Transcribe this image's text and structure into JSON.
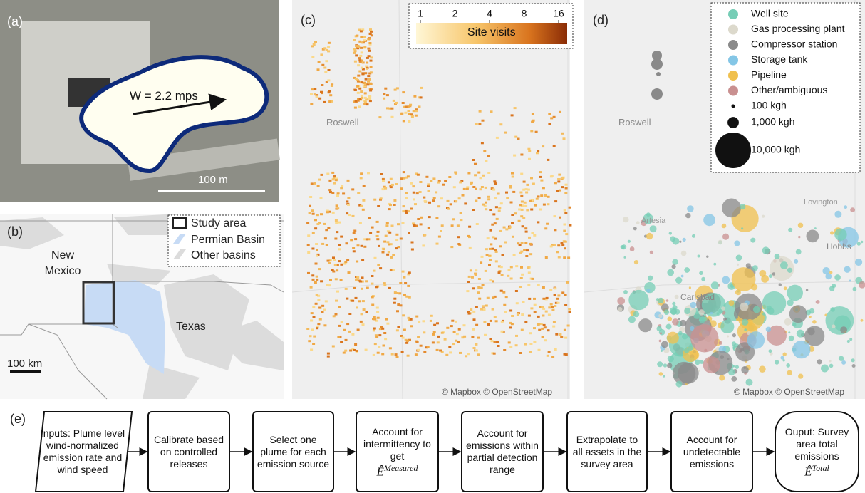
{
  "panel_a": {
    "label": "(a)",
    "annotation": "W = 2.2 mps",
    "scale_bar": "100 m"
  },
  "panel_b": {
    "label": "(b)",
    "legend": [
      "Study area",
      "Permian Basin",
      "Other basins"
    ],
    "places": [
      "New Mexico",
      "Texas"
    ],
    "scale_bar": "100 km"
  },
  "panel_c": {
    "label": "(c)",
    "colorbar_title": "Site visits",
    "colorbar_ticks": [
      1,
      2,
      4,
      8,
      16
    ],
    "places": [
      "Roswell"
    ],
    "credit": "© Mapbox © OpenStreetMap"
  },
  "panel_d": {
    "label": "(d)",
    "legend": [
      {
        "name": "Well site",
        "color": "#76cdb6"
      },
      {
        "name": "Gas processing plant",
        "color": "#dcd9cc"
      },
      {
        "name": "Compressor station",
        "color": "#8a8a8a"
      },
      {
        "name": "Storage tank",
        "color": "#84c6e6"
      },
      {
        "name": "Pipeline",
        "color": "#f0c04e"
      },
      {
        "name": "Other/ambiguous",
        "color": "#c99090"
      }
    ],
    "size_legend": [
      {
        "value": 100,
        "label": "100 kgh"
      },
      {
        "value": 1000,
        "label": "1,000 kgh"
      },
      {
        "value": 10000,
        "label": "10,000 kgh"
      }
    ],
    "places": [
      "Roswell",
      "Artesia",
      "Carlsbad",
      "Lovington",
      "Hobbs"
    ],
    "credit": "© Mapbox © OpenStreetMap"
  },
  "panel_e": {
    "label": "(e)",
    "steps": [
      {
        "text": "Inputs: Plume level wind-normalized emission rate and wind speed"
      },
      {
        "text": "Calibrate based on controlled releases"
      },
      {
        "text": "Select one plume for each emission source"
      },
      {
        "text": "Account for intermittency to get",
        "math": "Ê",
        "sup": "Measured"
      },
      {
        "text": "Account for emissions within partial detection range"
      },
      {
        "text": "Extrapolate to all assets in the survey area"
      },
      {
        "text": "Account for undetectable emissions"
      },
      {
        "text": "Ouput: Survey area total emissions",
        "math": "Ê",
        "sup": "Total"
      }
    ]
  }
}
